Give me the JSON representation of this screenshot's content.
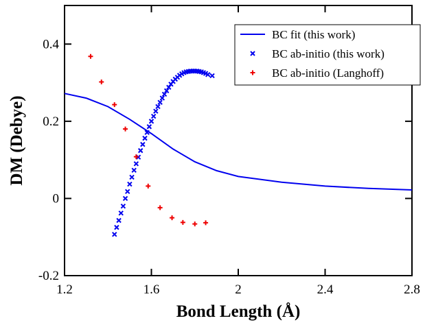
{
  "chart_data": {
    "type": "line",
    "xlabel": "Bond Length (Å)",
    "ylabel": "DM (Debye)",
    "xlim": [
      1.2,
      2.8
    ],
    "ylim": [
      -0.2,
      0.5
    ],
    "xticks": [
      1.2,
      1.6,
      2,
      2.4,
      2.8
    ],
    "yticks": [
      -0.2,
      0,
      0.2,
      0.4
    ],
    "legend": "upper right",
    "series": [
      {
        "name": "BC fit (this work)",
        "type": "line",
        "color": "#0000ee",
        "x": [
          1.2,
          1.3,
          1.4,
          1.5,
          1.6,
          1.7,
          1.8,
          1.9,
          2.0,
          2.2,
          2.4,
          2.6,
          2.8
        ],
        "values": [
          0.272,
          0.26,
          0.238,
          0.205,
          0.168,
          0.128,
          0.095,
          0.072,
          0.057,
          0.042,
          0.032,
          0.026,
          0.022
        ]
      },
      {
        "name": "BC ab-initio (this work)",
        "type": "scatter",
        "marker": "x",
        "color": "#0000ee",
        "x": [
          1.43,
          1.44,
          1.45,
          1.46,
          1.47,
          1.48,
          1.49,
          1.5,
          1.51,
          1.52,
          1.53,
          1.54,
          1.55,
          1.56,
          1.57,
          1.58,
          1.59,
          1.6,
          1.61,
          1.62,
          1.63,
          1.64,
          1.65,
          1.66,
          1.67,
          1.68,
          1.69,
          1.7,
          1.71,
          1.72,
          1.73,
          1.74,
          1.75,
          1.76,
          1.77,
          1.78,
          1.79,
          1.8,
          1.81,
          1.82,
          1.83,
          1.84,
          1.85,
          1.86,
          1.88
        ],
        "values": [
          -0.093,
          -0.075,
          -0.057,
          -0.038,
          -0.02,
          0.0,
          0.018,
          0.037,
          0.055,
          0.073,
          0.09,
          0.107,
          0.124,
          0.14,
          0.156,
          0.171,
          0.186,
          0.2,
          0.213,
          0.226,
          0.238,
          0.249,
          0.26,
          0.27,
          0.279,
          0.288,
          0.296,
          0.303,
          0.309,
          0.314,
          0.319,
          0.323,
          0.326,
          0.328,
          0.329,
          0.33,
          0.33,
          0.33,
          0.33,
          0.329,
          0.328,
          0.326,
          0.324,
          0.321,
          0.318
        ]
      },
      {
        "name": "BC ab-initio (Langhoff)",
        "type": "scatter",
        "marker": "+",
        "color": "#ee0000",
        "x": [
          1.32,
          1.37,
          1.43,
          1.48,
          1.53,
          1.585,
          1.64,
          1.695,
          1.745,
          1.8,
          1.85
        ],
        "values": [
          0.368,
          0.302,
          0.243,
          0.18,
          0.108,
          0.032,
          -0.024,
          -0.05,
          -0.062,
          -0.066,
          -0.063
        ]
      }
    ]
  }
}
